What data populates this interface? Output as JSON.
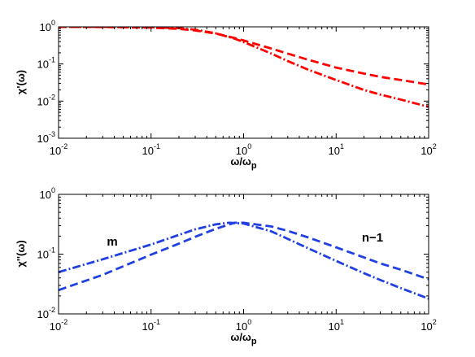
{
  "chart_data": [
    {
      "type": "line",
      "xscale": "log",
      "yscale": "log",
      "xlim": [
        0.01,
        100
      ],
      "ylim": [
        0.001,
        1
      ],
      "xticks": [
        0.01,
        0.1,
        1,
        10,
        100
      ],
      "yticks": [
        0.001,
        0.01,
        0.1,
        1
      ],
      "xlabel": {
        "base": "ω/ω",
        "sub": "p"
      },
      "ylabel": "χ'(ω)",
      "grid": false,
      "series": [
        {
          "style": "dashed",
          "color": "#ff0000",
          "x": [
            0.01,
            0.03,
            0.1,
            0.2,
            0.3,
            0.5,
            0.8,
            1,
            2,
            3,
            5,
            10,
            20,
            30,
            50,
            100
          ],
          "y": [
            1.0,
            0.99,
            0.95,
            0.88,
            0.8,
            0.66,
            0.5,
            0.43,
            0.26,
            0.19,
            0.13,
            0.08,
            0.055,
            0.045,
            0.037,
            0.028
          ]
        },
        {
          "style": "dash-dot",
          "color": "#ff0000",
          "x": [
            0.01,
            0.03,
            0.1,
            0.2,
            0.3,
            0.5,
            0.8,
            1,
            2,
            3,
            5,
            10,
            20,
            30,
            50,
            100
          ],
          "y": [
            1.0,
            1.0,
            0.98,
            0.92,
            0.84,
            0.67,
            0.48,
            0.39,
            0.19,
            0.12,
            0.07,
            0.037,
            0.02,
            0.015,
            0.011,
            0.007
          ]
        }
      ]
    },
    {
      "type": "line",
      "xscale": "log",
      "yscale": "log",
      "xlim": [
        0.01,
        100
      ],
      "ylim": [
        0.01,
        1
      ],
      "xticks": [
        0.01,
        0.1,
        1,
        10,
        100
      ],
      "yticks": [
        0.01,
        0.1,
        1
      ],
      "xlabel": {
        "base": "ω/ω",
        "sub": "p"
      },
      "ylabel": "χ''(ω)",
      "grid": false,
      "annotations": [
        "m",
        "n−1"
      ],
      "series": [
        {
          "style": "dash-dot",
          "color": "#2040e0",
          "x": [
            0.01,
            0.03,
            0.1,
            0.2,
            0.3,
            0.5,
            0.7,
            1,
            2,
            3,
            5,
            10,
            20,
            30,
            50,
            100
          ],
          "y": [
            0.05,
            0.082,
            0.145,
            0.21,
            0.26,
            0.315,
            0.335,
            0.325,
            0.24,
            0.18,
            0.125,
            0.077,
            0.048,
            0.037,
            0.027,
            0.018
          ]
        },
        {
          "style": "dashed",
          "color": "#2040e0",
          "x": [
            0.01,
            0.03,
            0.1,
            0.2,
            0.3,
            0.5,
            0.8,
            1,
            2,
            3,
            5,
            10,
            20,
            30,
            50,
            100
          ],
          "y": [
            0.025,
            0.045,
            0.098,
            0.15,
            0.195,
            0.265,
            0.335,
            0.335,
            0.29,
            0.245,
            0.19,
            0.13,
            0.088,
            0.07,
            0.055,
            0.038
          ]
        }
      ]
    }
  ]
}
